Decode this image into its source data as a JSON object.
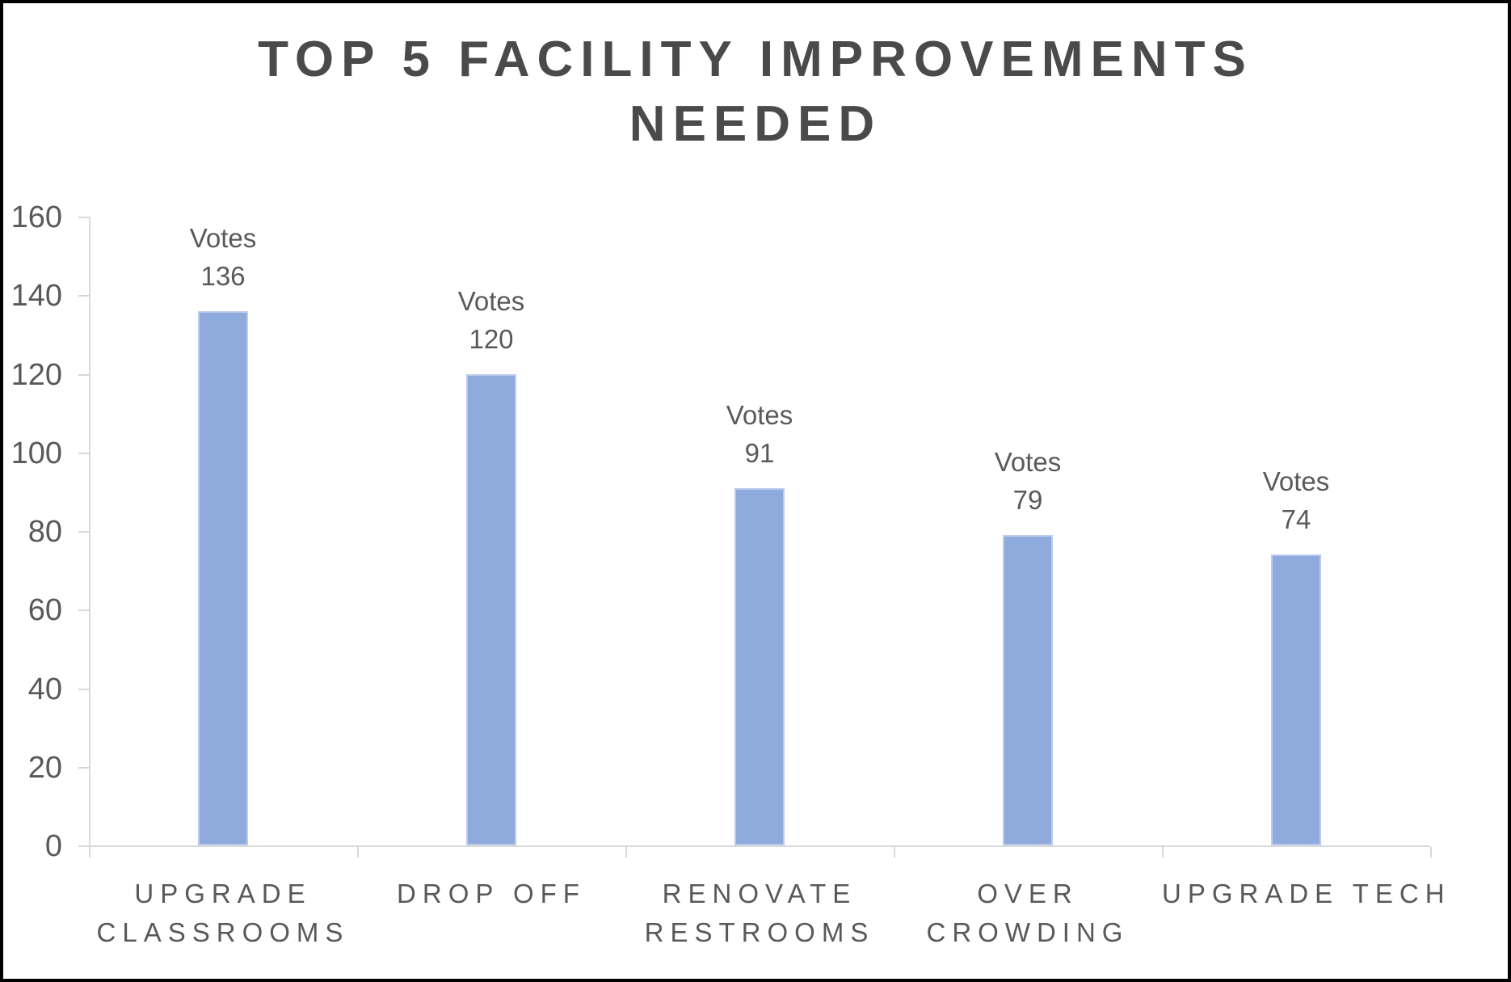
{
  "title": {
    "line1": "TOP 5 FACILITY IMPROVEMENTS",
    "line2": "NEEDED"
  },
  "chart_data": {
    "type": "bar",
    "title": "TOP 5 FACILITY IMPROVEMENTS NEEDED",
    "series": [
      {
        "name": "Votes",
        "values": [
          136,
          120,
          91,
          79,
          74
        ]
      }
    ],
    "categories": [
      "UPGRADE CLASSROOMS",
      "DROP OFF",
      "RENOVATE RESTROOMS",
      "OVER CROWDING",
      "UPGRADE TECH"
    ],
    "category_label_lines": [
      [
        "UPGRADE",
        "CLASSROOMS"
      ],
      [
        "DROP OFF"
      ],
      [
        "RENOVATE",
        "RESTROOMS"
      ],
      [
        "OVER",
        "CROWDING"
      ],
      [
        "UPGRADE TECH"
      ]
    ],
    "data_labels": [
      [
        "Votes",
        "136"
      ],
      [
        "Votes",
        "120"
      ],
      [
        "Votes",
        "91"
      ],
      [
        "Votes",
        "79"
      ],
      [
        "Votes",
        "74"
      ]
    ],
    "xlabel": "",
    "ylabel": "",
    "ylim": [
      0,
      160
    ],
    "y_ticks": [
      0,
      20,
      40,
      60,
      80,
      100,
      120,
      140,
      160
    ],
    "grid": false,
    "legend": "none",
    "colors": {
      "bar_fill": "#8faadc",
      "bar_edge": "#bccbec",
      "axis_line": "#d9d9d9",
      "tick_label": "#595959",
      "data_label": "#595959",
      "category_label": "#595959",
      "title": "#4a4a4a"
    }
  }
}
